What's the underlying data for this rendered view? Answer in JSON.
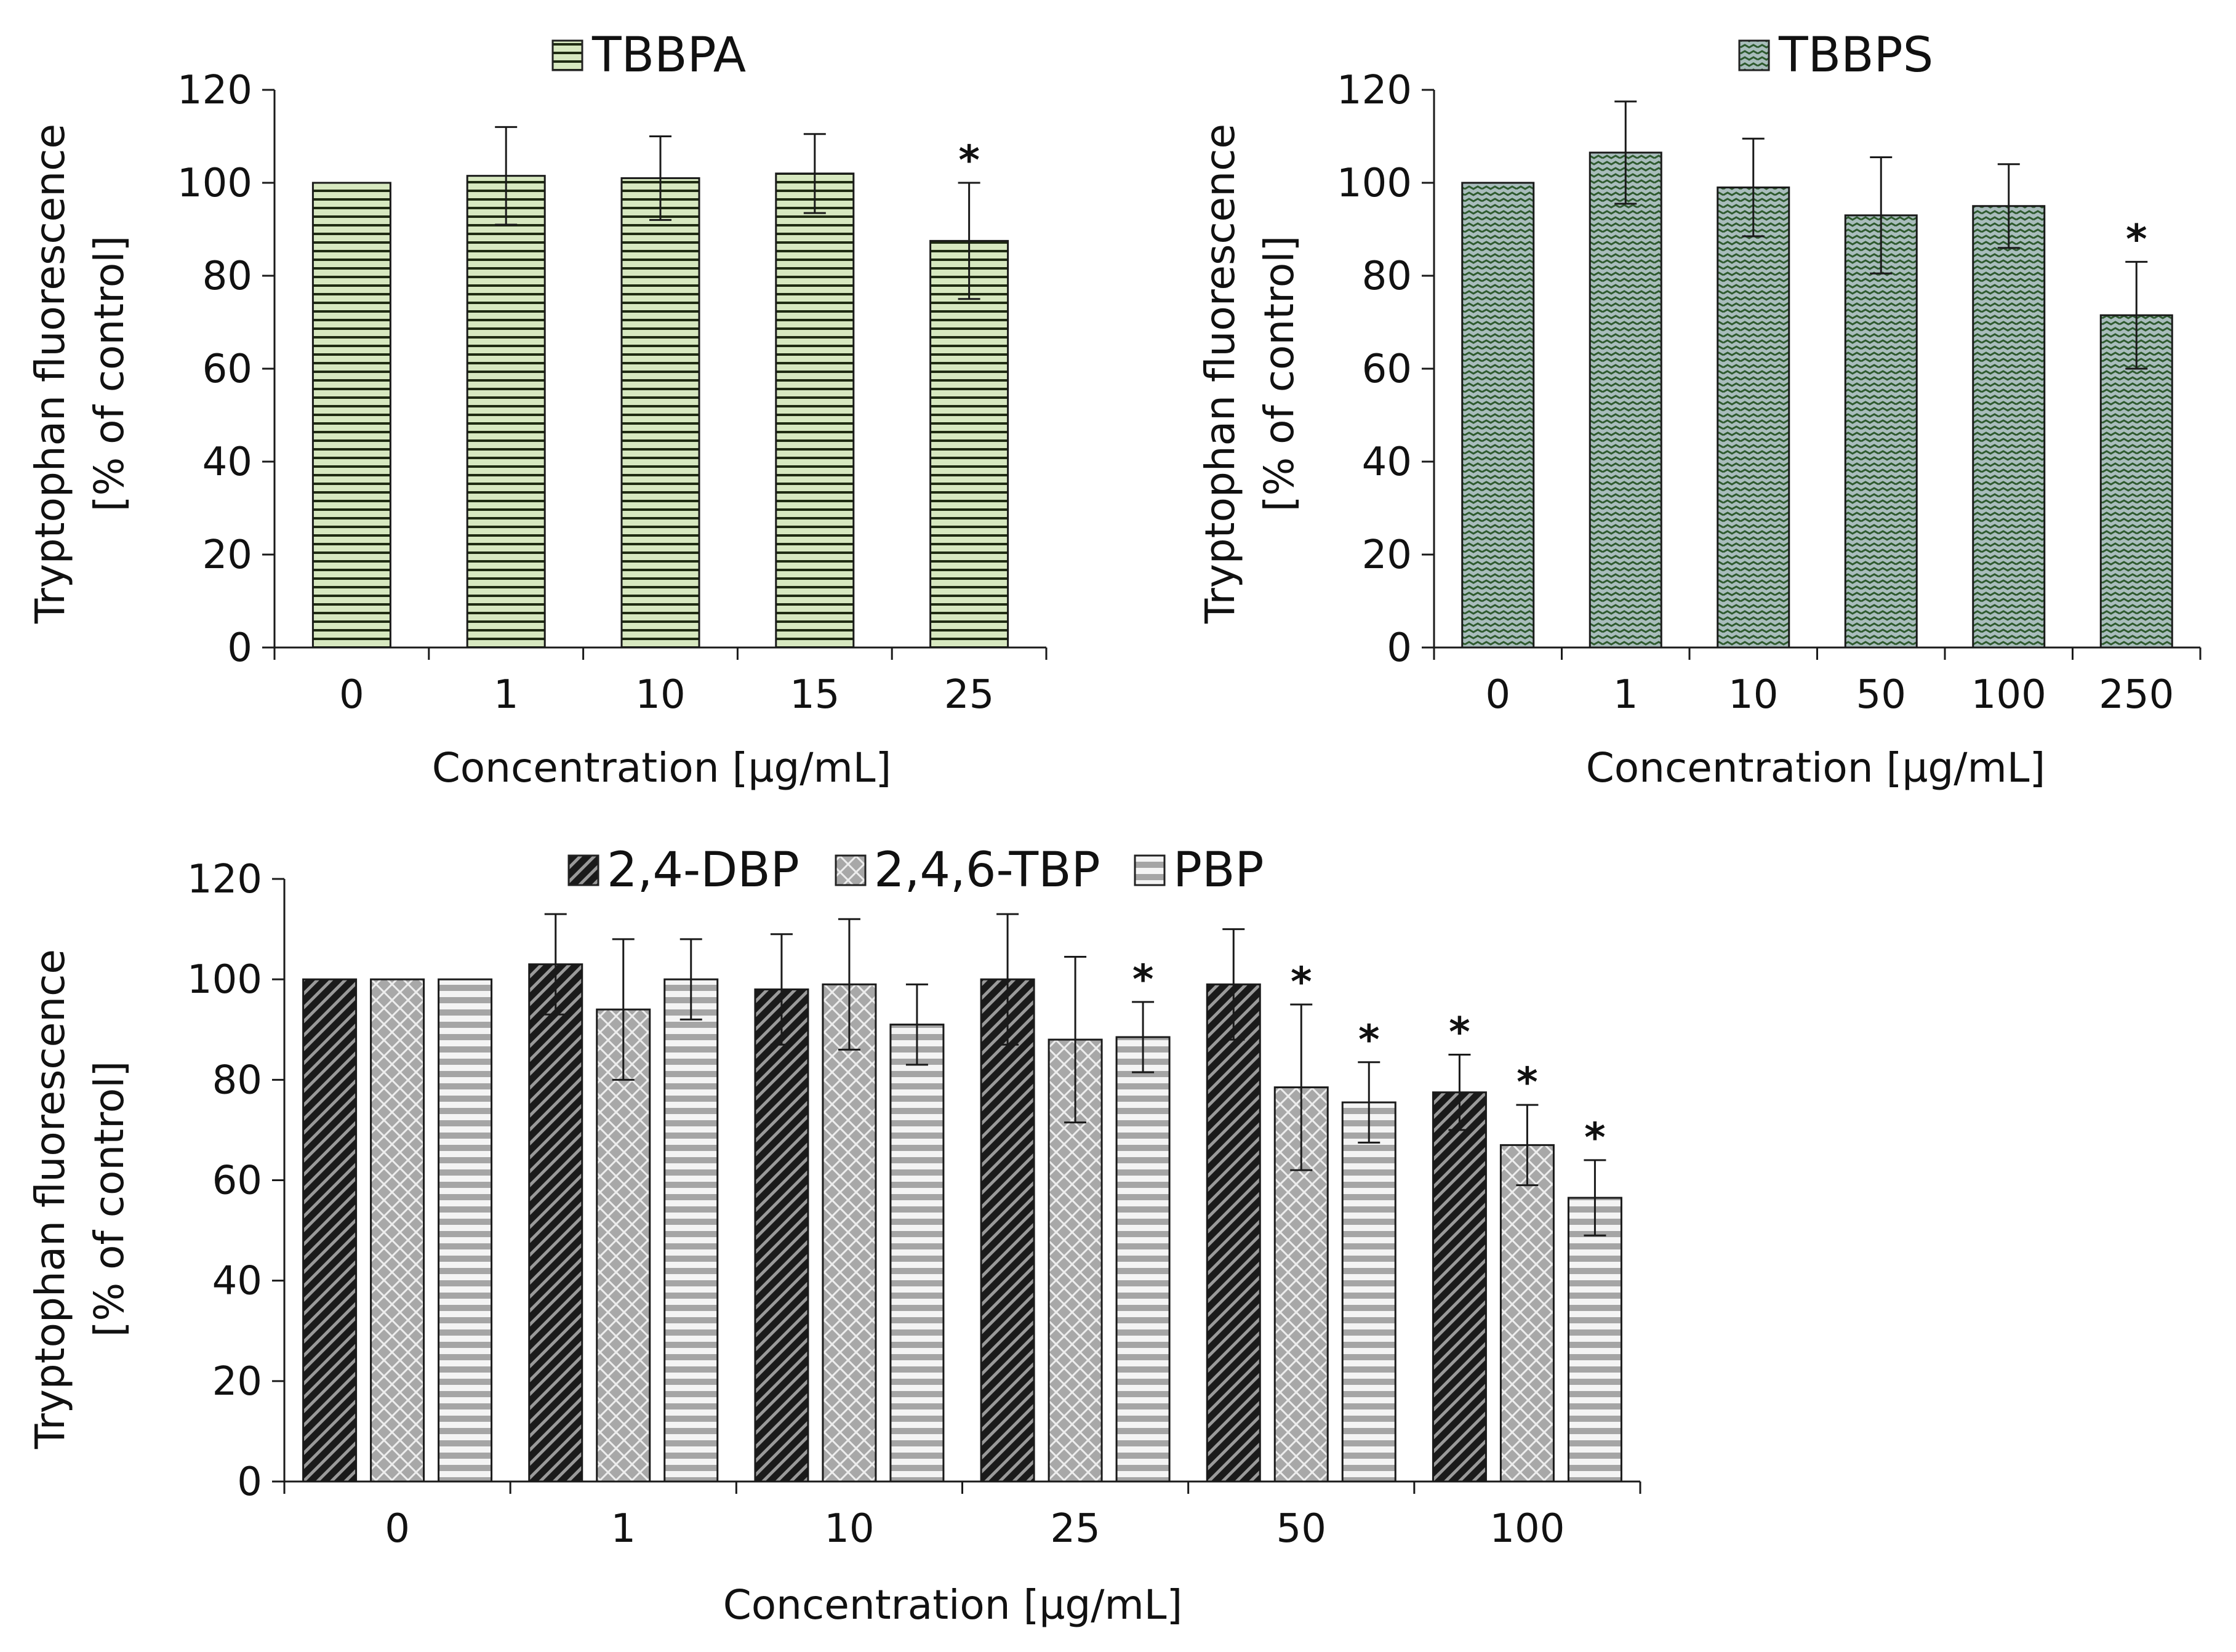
{
  "chart_data": [
    {
      "type": "bar",
      "id": "tbbpa",
      "categories": [
        "0",
        "1",
        "10",
        "15",
        "25"
      ],
      "series": [
        {
          "name": "TBBPA",
          "values": [
            100,
            101.5,
            101,
            102,
            87.5
          ],
          "errors": [
            0,
            10.5,
            9,
            8.5,
            12.5
          ],
          "significant": [
            false,
            false,
            false,
            false,
            true
          ],
          "color": "#d7e8c0",
          "pattern": "horizontal-lines"
        }
      ],
      "significance_marker": "*",
      "xlabel": "Concentration [µg/mL]",
      "ylabel_line1": "Tryptophan fluorescence",
      "ylabel_line2": "[% of control]",
      "ylim": [
        0,
        120
      ],
      "yticks": [
        0,
        20,
        40,
        60,
        80,
        100,
        120
      ],
      "legend_position": "top-center",
      "grid": false
    },
    {
      "type": "bar",
      "id": "tbbps",
      "categories": [
        "0",
        "1",
        "10",
        "50",
        "100",
        "250"
      ],
      "series": [
        {
          "name": "TBBPS",
          "values": [
            100,
            106.5,
            99,
            93,
            95,
            71.5
          ],
          "errors": [
            0,
            11,
            10.5,
            12.5,
            9,
            11.5
          ],
          "significant": [
            false,
            false,
            false,
            false,
            false,
            true
          ],
          "color": "#a9bdbc",
          "pattern": "zigzag"
        }
      ],
      "significance_marker": "*",
      "xlabel": "Concentration [µg/mL]",
      "ylabel_line1": "Tryptophan fluorescence",
      "ylabel_line2": "[% of control]",
      "ylim": [
        0,
        120
      ],
      "yticks": [
        0,
        20,
        40,
        60,
        80,
        100,
        120
      ],
      "legend_position": "top-center",
      "grid": false
    },
    {
      "type": "bar",
      "id": "phenols",
      "categories": [
        "0",
        "1",
        "10",
        "25",
        "50",
        "100"
      ],
      "series": [
        {
          "name": "2,4-DBP",
          "values": [
            100,
            103,
            98,
            100,
            99,
            77.5
          ],
          "errors": [
            0,
            10,
            11,
            13,
            11,
            7.5
          ],
          "significant": [
            false,
            false,
            false,
            false,
            false,
            true
          ],
          "color": "#2b2b2b",
          "pattern": "diagonal-lines"
        },
        {
          "name": "2,4,6-TBP",
          "values": [
            100,
            94,
            99,
            88,
            78.5,
            67
          ],
          "errors": [
            0,
            14,
            13,
            16.5,
            16.5,
            8
          ],
          "significant": [
            false,
            false,
            false,
            false,
            true,
            true
          ],
          "color": "#a8a8a8",
          "pattern": "crosshatch"
        },
        {
          "name": "PBP",
          "values": [
            100,
            100,
            91,
            88.5,
            75.5,
            56.5
          ],
          "errors": [
            0,
            8,
            8,
            7,
            8,
            7.5
          ],
          "significant": [
            false,
            false,
            false,
            true,
            true,
            true
          ],
          "color": "#bdbdbd",
          "pattern": "horizontal-lines"
        }
      ],
      "significance_marker": "*",
      "xlabel": "Concentration [µg/mL]",
      "ylabel_line1": "Tryptophan fluorescence",
      "ylabel_line2": "[% of control]",
      "ylim": [
        0,
        120
      ],
      "yticks": [
        0,
        20,
        40,
        60,
        80,
        100,
        120
      ],
      "legend_position": "top-center",
      "grid": false
    }
  ]
}
